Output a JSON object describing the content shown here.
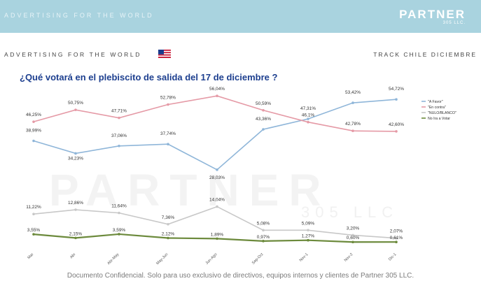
{
  "header": {
    "tagline": "ADVERTISING FOR THE WORLD",
    "logo_brand": "PARTNER",
    "logo_sub": "305 LLC."
  },
  "subheader": {
    "left": "ADVERTISING FOR THE WORLD",
    "right": "TRACK CHILE DICIEMBRE"
  },
  "watermark": {
    "brand": "PARTNER",
    "sub": "305 LLC"
  },
  "footer": {
    "text": "Documento Confidencial. Solo para uso exclusivo de directivos, equipos internos y clientes de Partner 305 LLC."
  },
  "chart_data": {
    "type": "line",
    "title": "¿Qué votará en el plebiscito de salida del 17 de diciembre ?",
    "categories": [
      "Mar",
      "Abr",
      "Abr-May",
      "May-Jun",
      "Jun-Ago",
      "Sep-Oct",
      "Nov-1",
      "Nov-2",
      "Dic-1"
    ],
    "legend_position": "top-right",
    "grid": false,
    "series": [
      {
        "name": "\"A Favor\"",
        "color": "#8fb6d9",
        "values": [
          38.99,
          34.23,
          37.06,
          37.74,
          28.03,
          43.36,
          47.31,
          53.42,
          54.72
        ],
        "labels": [
          "38,99%",
          "34,23%",
          "37,06%",
          "37,74%",
          "28,03%",
          "43,36%",
          "47,31%",
          "53,42%",
          "54,72%"
        ]
      },
      {
        "name": "\"En contra\"",
        "color": "#e59aa6",
        "values": [
          46.25,
          50.75,
          47.71,
          52.78,
          56.04,
          50.59,
          46.1,
          42.78,
          42.6
        ],
        "labels": [
          "46,25%",
          "50,75%",
          "47,71%",
          "52,78%",
          "56,04%",
          "50,59%",
          "46,1%",
          "42,78%",
          "42,60%"
        ]
      },
      {
        "name": "\"NULO/BLANCO\"",
        "color": "#c8c8c8",
        "values": [
          11.22,
          12.86,
          11.64,
          7.36,
          14.04,
          5.08,
          5.09,
          3.2,
          2.07
        ],
        "labels": [
          "11,22%",
          "12,86%",
          "11,64%",
          "7,36%",
          "14,04%",
          "5,08%",
          "5,09%",
          "3,20%",
          "2,07%"
        ]
      },
      {
        "name": "No Ira a Votar",
        "color": "#6c8a3c",
        "values": [
          3.55,
          2.15,
          3.59,
          2.12,
          1.89,
          0.97,
          1.27,
          0.6,
          0.61
        ],
        "labels": [
          "3,55%",
          "2,15%",
          "3,59%",
          "2,12%",
          "1,89%",
          "0,97%",
          "1,27%",
          "0,60%",
          "0,61%"
        ]
      }
    ]
  }
}
